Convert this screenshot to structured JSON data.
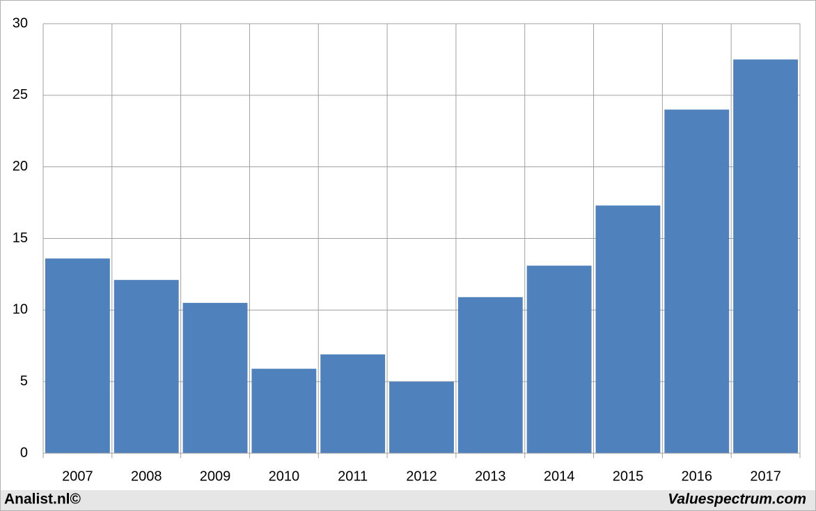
{
  "chart_data": {
    "type": "bar",
    "categories": [
      "2007",
      "2008",
      "2009",
      "2010",
      "2011",
      "2012",
      "2013",
      "2014",
      "2015",
      "2016",
      "2017"
    ],
    "values": [
      13.6,
      12.1,
      10.5,
      5.9,
      6.9,
      5.0,
      10.9,
      13.1,
      17.3,
      24.0,
      27.5
    ],
    "color": "#4f81bd",
    "ylim": [
      0,
      30
    ],
    "yticks": [
      0,
      5,
      10,
      15,
      20,
      25,
      30
    ],
    "grid": true
  },
  "footer": {
    "left": "Analist.nl©",
    "right": "Valuespectrum.com"
  }
}
